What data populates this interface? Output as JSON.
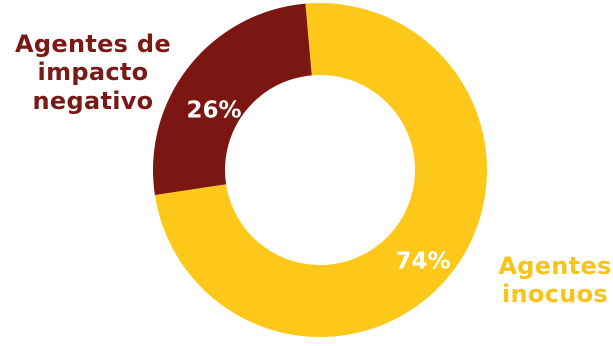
{
  "chart_data": {
    "type": "pie",
    "donut": true,
    "title": "",
    "slices": [
      {
        "label": "Agentes inocuos",
        "label_lines": [
          "Agentes",
          "inocuos"
        ],
        "value": 74,
        "display": "74%",
        "color": "#fec81b"
      },
      {
        "label": "Agentes de impacto negativo",
        "label_lines": [
          "Agentes de",
          "impacto",
          "negativo"
        ],
        "value": 26,
        "display": "26%",
        "color": "#7c1612",
        "label_color": "#7a1a16"
      }
    ],
    "positive_label_color": "#f9c31a"
  }
}
